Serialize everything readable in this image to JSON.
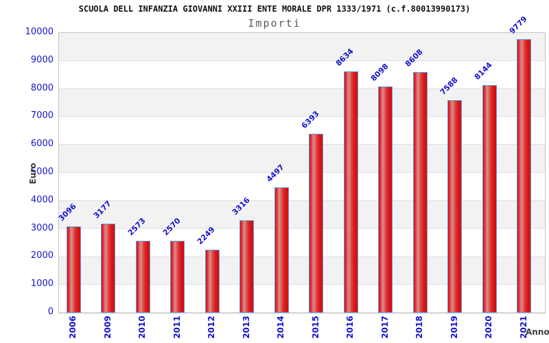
{
  "header": {
    "title": "SCUOLA DELL INFANZIA GIOVANNI XXIII ENTE MORALE DPR 1333/1971 (c.f.80013990173)",
    "subtitle": "Importi"
  },
  "chart_data": {
    "type": "bar",
    "title": "SCUOLA DELL INFANZIA GIOVANNI XXIII ENTE MORALE DPR 1333/1971 (c.f.80013990173)",
    "subtitle": "Importi",
    "xlabel": "Anno",
    "ylabel": "Euro",
    "categories": [
      "2006",
      "2009",
      "2010",
      "2011",
      "2012",
      "2013",
      "2014",
      "2015",
      "2016",
      "2017",
      "2018",
      "2019",
      "2020",
      "2021"
    ],
    "values": [
      3096,
      3177,
      2573,
      2570,
      2249,
      3316,
      4497,
      6393,
      8634,
      8098,
      8608,
      7588,
      8144,
      9779
    ],
    "ylim": [
      0,
      10000
    ],
    "ytick_step": 1000,
    "grid": true,
    "legend_position": "none",
    "bar_value_labels_shown": true,
    "colors": {
      "bar_fill": "#e01414",
      "bar_fill_highlight": "#d98f8f",
      "bar_border": "#58a0e8",
      "tick_label": "#1414cc",
      "value_label": "#1414cc",
      "band_stripe": "#f2f2f2",
      "plot_border": "#c4c4c4",
      "axis_title": "#3d3d3d",
      "title_text": "#111111",
      "subtitle_text": "#5a5a5a"
    }
  }
}
